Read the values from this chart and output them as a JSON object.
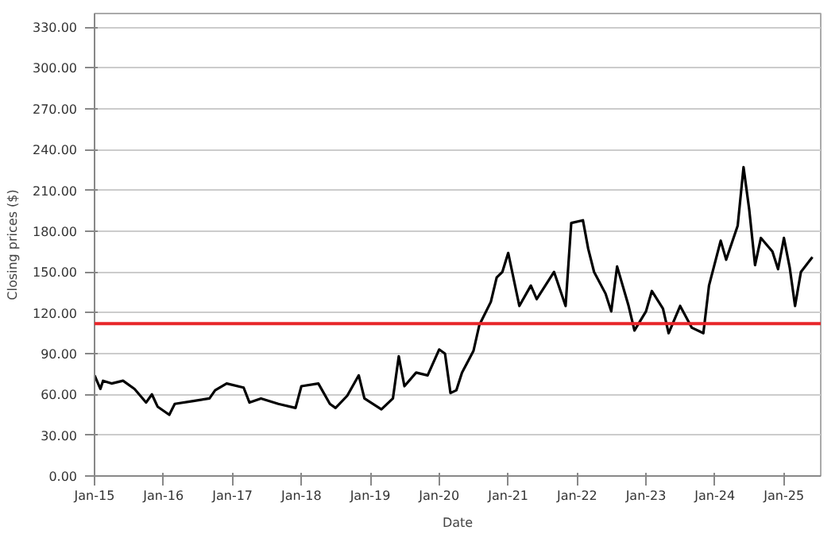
{
  "chart_data": {
    "type": "line",
    "xlabel": "Date",
    "ylabel": "Closing prices ($)",
    "x": [
      "2015-01-01",
      "2015-02-01",
      "2015-02-15",
      "2015-04-01",
      "2015-06-01",
      "2015-08-01",
      "2015-10-01",
      "2015-11-01",
      "2015-12-01",
      "2016-02-01",
      "2016-03-01",
      "2016-06-01",
      "2016-09-01",
      "2016-10-01",
      "2016-12-01",
      "2017-03-01",
      "2017-04-01",
      "2017-06-01",
      "2017-09-01",
      "2017-12-01",
      "2018-01-01",
      "2018-04-01",
      "2018-06-01",
      "2018-07-01",
      "2018-09-01",
      "2018-11-01",
      "2018-12-01",
      "2019-03-01",
      "2019-05-01",
      "2019-06-01",
      "2019-07-01",
      "2019-09-01",
      "2019-11-01",
      "2020-01-01",
      "2020-02-01",
      "2020-03-01",
      "2020-04-01",
      "2020-05-01",
      "2020-07-01",
      "2020-08-01",
      "2020-10-01",
      "2020-11-01",
      "2020-12-01",
      "2021-01-01",
      "2021-03-01",
      "2021-05-01",
      "2021-06-01",
      "2021-09-01",
      "2021-11-01",
      "2021-12-01",
      "2022-02-01",
      "2022-03-01",
      "2022-04-01",
      "2022-06-01",
      "2022-07-01",
      "2022-08-01",
      "2022-10-01",
      "2022-11-01",
      "2023-01-01",
      "2023-02-01",
      "2023-04-01",
      "2023-05-01",
      "2023-07-01",
      "2023-08-01",
      "2023-09-01",
      "2023-11-01",
      "2023-12-01",
      "2024-02-01",
      "2024-03-01",
      "2024-05-01",
      "2024-06-01",
      "2024-07-01",
      "2024-08-01",
      "2024-09-01",
      "2024-11-01",
      "2024-12-01",
      "2025-01-01",
      "2025-02-01",
      "2025-03-01",
      "2025-04-01",
      "2025-06-01"
    ],
    "series": [
      {
        "color": "#000000",
        "values": [
          74,
          64,
          70,
          68,
          70,
          64,
          54,
          60,
          51,
          45,
          53,
          55,
          57,
          63,
          68,
          65,
          54,
          57,
          53,
          50,
          66,
          68,
          53,
          50,
          59,
          74,
          57,
          49,
          57,
          88,
          66,
          76,
          74,
          93,
          90,
          61,
          63,
          76,
          92,
          111,
          128,
          146,
          150,
          164,
          125,
          140,
          130,
          150,
          125,
          186,
          188,
          167,
          150,
          134,
          121,
          154,
          125,
          107,
          121,
          136,
          123,
          105,
          125,
          117,
          109,
          105,
          140,
          173,
          159,
          184,
          227,
          196,
          155,
          175,
          165,
          152,
          175,
          153,
          125,
          150,
          161
        ]
      }
    ],
    "xlim": [
      "2015-01-01",
      "2025-07-15"
    ],
    "xticks": [
      {
        "value": "2015-01",
        "label": "Jan-15"
      },
      {
        "value": "2016-01",
        "label": "Jan-16"
      },
      {
        "value": "2017-01",
        "label": "Jan-17"
      },
      {
        "value": "2018-01",
        "label": "Jan-18"
      },
      {
        "value": "2019-01",
        "label": "Jan-19"
      },
      {
        "value": "2020-01",
        "label": "Jan-20"
      },
      {
        "value": "2021-01",
        "label": "Jan-21"
      },
      {
        "value": "2022-01",
        "label": "Jan-22"
      },
      {
        "value": "2023-01",
        "label": "Jan-23"
      },
      {
        "value": "2024-01",
        "label": "Jan-24"
      },
      {
        "value": "2025-01",
        "label": "Jan-25"
      }
    ],
    "ylim": [
      0,
      340
    ],
    "yticks": [
      {
        "value": 0,
        "label": "0.00"
      },
      {
        "value": 30,
        "label": "30.00"
      },
      {
        "value": 60,
        "label": "60.00"
      },
      {
        "value": 90,
        "label": "90.00"
      },
      {
        "value": 120,
        "label": "120.00"
      },
      {
        "value": 150,
        "label": "150.00"
      },
      {
        "value": 180,
        "label": "180.00"
      },
      {
        "value": 210,
        "label": "210.00"
      },
      {
        "value": 240,
        "label": "240.00"
      },
      {
        "value": 270,
        "label": "270.00"
      },
      {
        "value": 300,
        "label": "300.00"
      },
      {
        "value": 330,
        "label": "330.00"
      }
    ],
    "ref_lines": [
      {
        "axis": "y",
        "value": 112,
        "color": "#e8262a"
      }
    ],
    "grid": "y",
    "marker": "none",
    "line_style": "solid"
  }
}
